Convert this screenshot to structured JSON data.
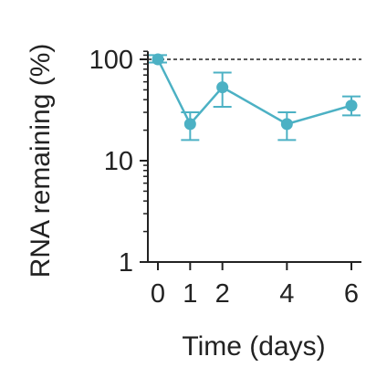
{
  "chart_data": {
    "type": "line",
    "xlabel": "Time (days)",
    "ylabel": "RNA remaining (%)",
    "x_ticks": [
      0,
      1,
      2,
      4,
      6
    ],
    "x_tick_labels": [
      "0",
      "1",
      "2",
      "4",
      "6"
    ],
    "y_scale": "log",
    "y_ticks": [
      1,
      10,
      100
    ],
    "y_tick_labels": [
      "1",
      "10",
      "100"
    ],
    "xlim": [
      -0.35,
      6.35
    ],
    "ylim": [
      1,
      120
    ],
    "reference_line": {
      "y": 100,
      "style": "dashed"
    },
    "series": [
      {
        "x": [
          0,
          1,
          2,
          4,
          6
        ],
        "y": [
          100,
          23,
          53,
          23,
          35
        ],
        "err_low": [
          93,
          16,
          34,
          16,
          28
        ],
        "err_high": [
          110,
          30,
          74,
          30,
          43
        ]
      }
    ],
    "color": "#4cb1c4"
  }
}
